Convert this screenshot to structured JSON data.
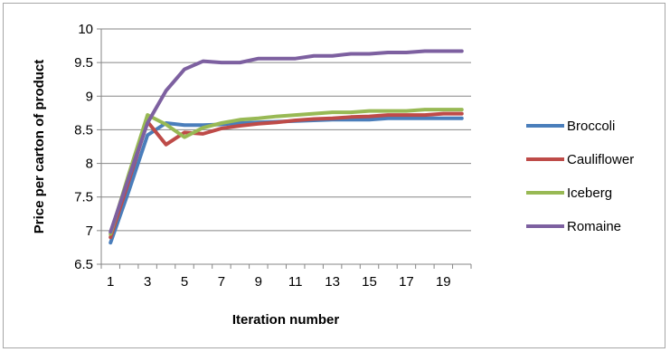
{
  "chart_data": {
    "type": "line",
    "xlabel": "Iteration number",
    "ylabel": "Price per carton of product",
    "ylim": [
      6.5,
      10
    ],
    "yticks": [
      6.5,
      7,
      7.5,
      8,
      8.5,
      9,
      9.5,
      10
    ],
    "ytick_labels": [
      "6.5",
      "7",
      "7.5",
      "8",
      "8.5",
      "9",
      "9.5",
      "10"
    ],
    "x": [
      1,
      2,
      3,
      4,
      5,
      6,
      7,
      8,
      9,
      10,
      11,
      12,
      13,
      14,
      15,
      16,
      17,
      18,
      19,
      20
    ],
    "xtick_labels": [
      "1",
      "3",
      "5",
      "7",
      "9",
      "11",
      "13",
      "15",
      "17",
      "19"
    ],
    "xtick_values": [
      1,
      3,
      5,
      7,
      9,
      11,
      13,
      15,
      17,
      19
    ],
    "grid": "horizontal",
    "legend": "right",
    "series": [
      {
        "name": "Broccoli",
        "color": "#4a7ebb",
        "values": [
          6.82,
          7.6,
          8.42,
          8.6,
          8.57,
          8.57,
          8.58,
          8.6,
          8.61,
          8.62,
          8.63,
          8.64,
          8.65,
          8.65,
          8.65,
          8.67,
          8.67,
          8.67,
          8.67,
          8.67
        ]
      },
      {
        "name": "Cauliflower",
        "color": "#be4b48",
        "values": [
          6.9,
          7.75,
          8.62,
          8.28,
          8.46,
          8.44,
          8.52,
          8.56,
          8.59,
          8.61,
          8.64,
          8.66,
          8.67,
          8.69,
          8.7,
          8.72,
          8.72,
          8.72,
          8.74,
          8.74
        ]
      },
      {
        "name": "Iceberg",
        "color": "#98b954",
        "values": [
          6.95,
          7.85,
          8.72,
          8.58,
          8.39,
          8.53,
          8.6,
          8.65,
          8.67,
          8.7,
          8.72,
          8.74,
          8.76,
          8.76,
          8.78,
          8.78,
          8.78,
          8.8,
          8.8,
          8.8
        ]
      },
      {
        "name": "Romaine",
        "color": "#7d60a0",
        "values": [
          6.98,
          7.8,
          8.6,
          9.08,
          9.4,
          9.52,
          9.5,
          9.5,
          9.56,
          9.56,
          9.56,
          9.6,
          9.6,
          9.63,
          9.63,
          9.65,
          9.65,
          9.67,
          9.67,
          9.67
        ]
      }
    ]
  }
}
